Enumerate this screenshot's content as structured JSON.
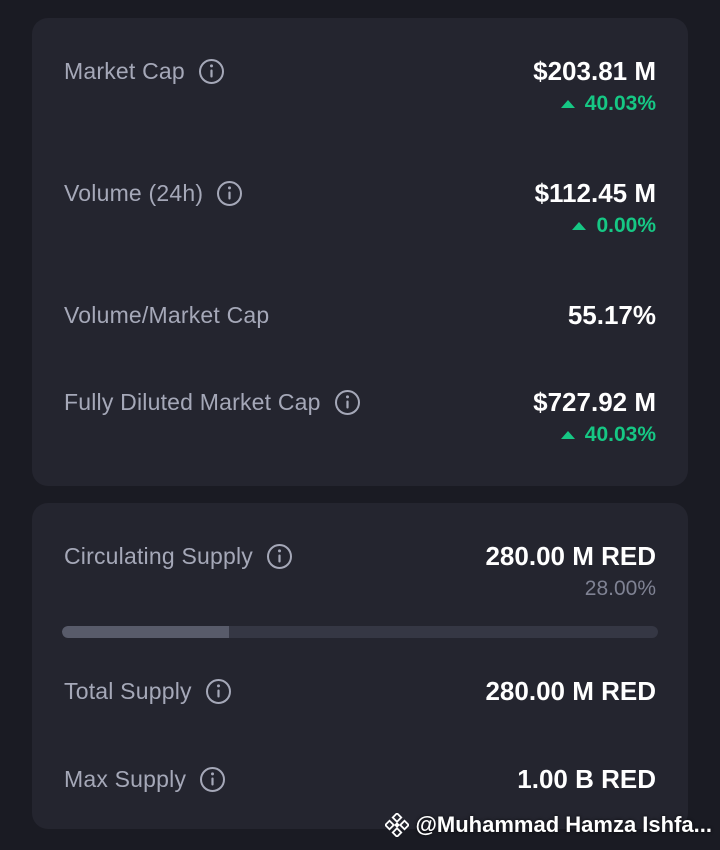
{
  "colors": {
    "background": "#1a1b23",
    "card": "#24252f",
    "label": "#a5a8b8",
    "positive": "#16c784",
    "muted": "#7f8293",
    "progress_track": "#353744",
    "progress_fill": "#585b6a"
  },
  "market": {
    "market_cap": {
      "label": "Market Cap",
      "icon": "info-icon",
      "value": "$203.81 M",
      "change": "40.03%",
      "direction": "up"
    },
    "volume": {
      "label": "Volume (24h)",
      "icon": "info-icon",
      "value": "$112.45 M",
      "change": "0.00%",
      "direction": "up"
    },
    "volume_market_cap": {
      "label": "Volume/Market Cap",
      "value": "55.17%"
    },
    "fdv": {
      "label": "Fully Diluted Market Cap",
      "icon": "info-icon",
      "value": "$727.92 M",
      "change": "40.03%",
      "direction": "up"
    }
  },
  "supply": {
    "circulating": {
      "label": "Circulating Supply",
      "icon": "info-icon",
      "value": "280.00 M RED",
      "percent": "28.00%",
      "progress_fraction": 0.28
    },
    "total": {
      "label": "Total Supply",
      "icon": "info-icon",
      "value": "280.00 M RED"
    },
    "max": {
      "label": "Max Supply",
      "icon": "info-icon",
      "value": "1.00 B RED"
    }
  },
  "watermark": {
    "icon": "binance-logo-icon",
    "text": "@Muhammad Hamza Ishfa..."
  }
}
